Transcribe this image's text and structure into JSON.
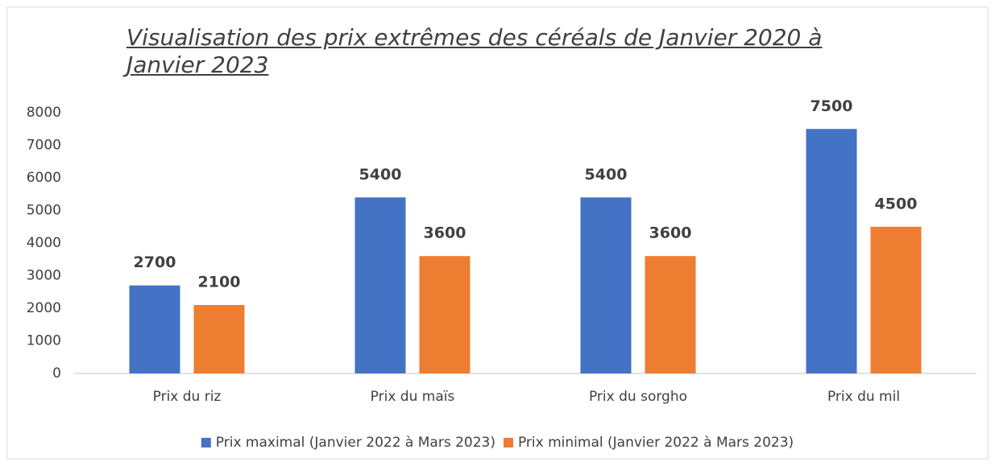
{
  "chart_data": {
    "type": "bar",
    "title": "Visualisation des prix extrêmes des céréals de Janvier 2020 à Janvier 2023",
    "categories": [
      "Prix du riz",
      "Prix du maïs",
      "Prix du sorgho",
      "Prix du mil"
    ],
    "series": [
      {
        "name": "Prix maximal (Janvier 2022 à Mars 2023)",
        "color": "#4472c4",
        "values": [
          2700,
          5400,
          5400,
          7500
        ]
      },
      {
        "name": "Prix minimal (Janvier 2022 à Mars 2023)",
        "color": "#ed7d31",
        "values": [
          2100,
          3600,
          3600,
          4500
        ]
      }
    ],
    "ylim": [
      0,
      8000
    ],
    "yticks": [
      0,
      1000,
      2000,
      3000,
      4000,
      5000,
      6000,
      7000,
      8000
    ],
    "grid": false,
    "legend": "bottom"
  }
}
